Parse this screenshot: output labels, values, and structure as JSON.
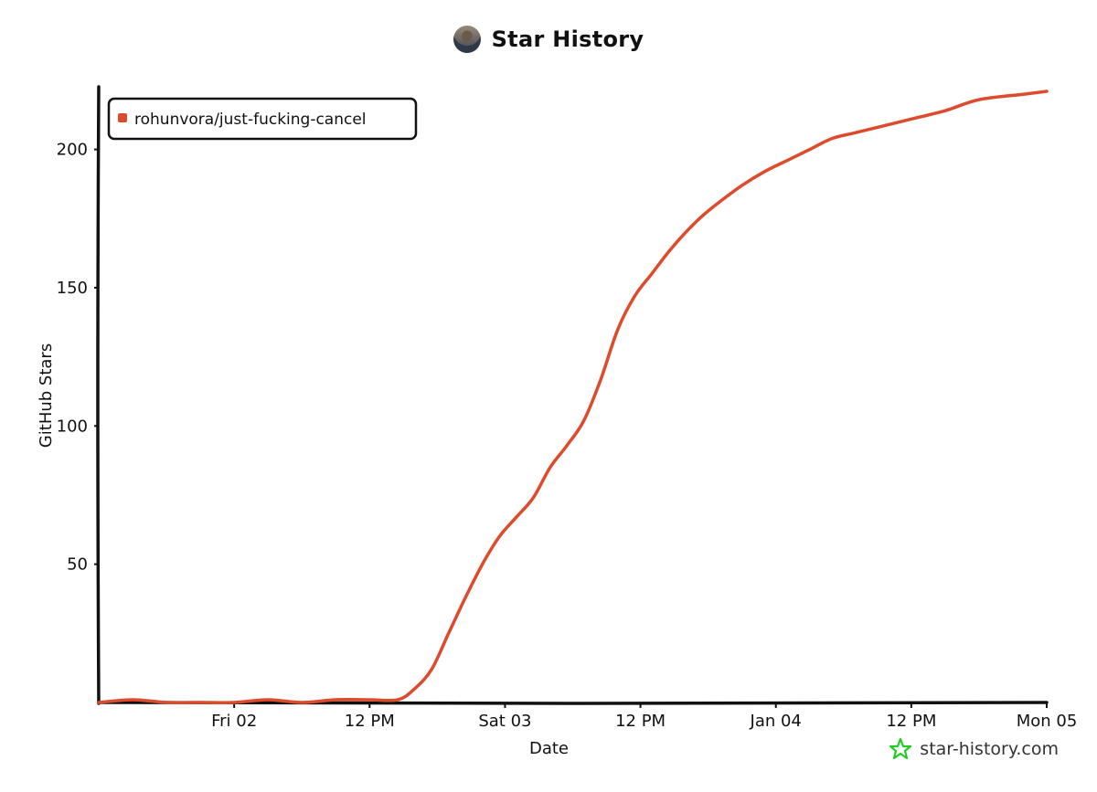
{
  "header": {
    "title": "Star History",
    "avatar_icon": "user-avatar-icon"
  },
  "watermark": {
    "text": "star-history.com",
    "icon": "star-icon",
    "icon_color": "#22cc22"
  },
  "chart_data": {
    "type": "line",
    "title": "Star History",
    "xlabel": "Date",
    "ylabel": "GitHub Stars",
    "x_range_hours": [
      0,
      78
    ],
    "x_ticks": [
      {
        "label": "Fri 02",
        "hour": 12
      },
      {
        "label": "12 PM",
        "hour": 24
      },
      {
        "label": "Sat 03",
        "hour": 36
      },
      {
        "label": "12 PM",
        "hour": 48
      },
      {
        "label": "Jan 04",
        "hour": 60
      },
      {
        "label": "12 PM",
        "hour": 72
      },
      {
        "label": "Mon 05",
        "hour": 84
      }
    ],
    "ylim": [
      0,
      220
    ],
    "y_ticks": [
      50,
      100,
      150,
      200
    ],
    "grid": false,
    "legend": "top-left",
    "series": [
      {
        "name": "rohunvora/just-fucking-cancel",
        "color": "#dd4b2c",
        "points": [
          [
            0,
            0
          ],
          [
            3,
            1
          ],
          [
            6,
            0
          ],
          [
            9,
            0
          ],
          [
            12,
            0
          ],
          [
            15,
            1
          ],
          [
            18,
            0
          ],
          [
            21,
            1
          ],
          [
            24,
            1
          ],
          [
            26.5,
            1
          ],
          [
            28,
            5
          ],
          [
            29.5,
            12
          ],
          [
            31,
            25
          ],
          [
            32.5,
            38
          ],
          [
            34,
            50
          ],
          [
            35.5,
            60
          ],
          [
            37,
            67
          ],
          [
            38.5,
            74
          ],
          [
            40,
            85
          ],
          [
            41.5,
            93
          ],
          [
            43,
            102
          ],
          [
            44.5,
            117
          ],
          [
            46,
            135
          ],
          [
            47.5,
            147
          ],
          [
            49,
            155
          ],
          [
            50.5,
            163
          ],
          [
            52,
            170
          ],
          [
            53.5,
            176
          ],
          [
            55,
            181
          ],
          [
            57,
            187
          ],
          [
            59,
            192
          ],
          [
            61,
            196
          ],
          [
            63,
            200
          ],
          [
            65,
            204
          ],
          [
            67,
            206
          ],
          [
            69,
            208
          ],
          [
            72,
            211
          ],
          [
            75,
            214
          ],
          [
            78,
            218
          ],
          [
            82,
            220
          ],
          [
            84,
            221
          ]
        ]
      }
    ]
  }
}
